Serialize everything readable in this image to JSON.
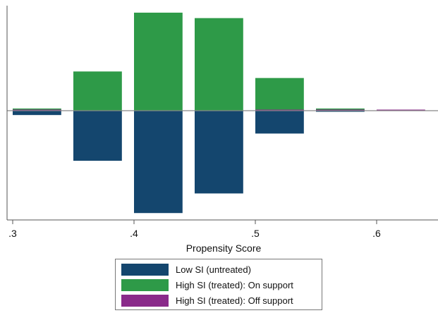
{
  "chart_data": {
    "type": "bar",
    "xlabel": "Propensity Score",
    "ylabel": "",
    "xlim": [
      0.3,
      0.65
    ],
    "ylim": [
      -0.095,
      0.092
    ],
    "xticks": [
      {
        "value": 0.3,
        "label": ".3"
      },
      {
        "value": 0.4,
        "label": ".4"
      },
      {
        "value": 0.5,
        "label": ".5"
      },
      {
        "value": 0.6,
        "label": ".6"
      }
    ],
    "bin_width": 0.04,
    "series": [
      {
        "name": "Low SI (untreated)",
        "color": "#14466e",
        "direction": "down",
        "bins": [
          {
            "x": 0.3,
            "value": 0.004
          },
          {
            "x": 0.35,
            "value": 0.046
          },
          {
            "x": 0.4,
            "value": 0.094
          },
          {
            "x": 0.45,
            "value": 0.076
          },
          {
            "x": 0.5,
            "value": 0.021
          },
          {
            "x": 0.55,
            "value": 0.001
          }
        ]
      },
      {
        "name": "High SI (treated): On support",
        "color": "#2e9a48",
        "direction": "up",
        "bins": [
          {
            "x": 0.3,
            "value": 0.002
          },
          {
            "x": 0.35,
            "value": 0.036
          },
          {
            "x": 0.4,
            "value": 0.09
          },
          {
            "x": 0.45,
            "value": 0.085
          },
          {
            "x": 0.5,
            "value": 0.03
          },
          {
            "x": 0.55,
            "value": 0.002
          }
        ]
      },
      {
        "name": "High SI (treated): Off support",
        "color": "#8a2a8a",
        "direction": "up",
        "bins": [
          {
            "x": 0.3,
            "value": 0.001
          },
          {
            "x": 0.5,
            "value": 0.0006
          },
          {
            "x": 0.55,
            "value": 0.001
          },
          {
            "x": 0.6,
            "value": 0.0005
          }
        ]
      }
    ],
    "legend_position": "bottom-center"
  }
}
